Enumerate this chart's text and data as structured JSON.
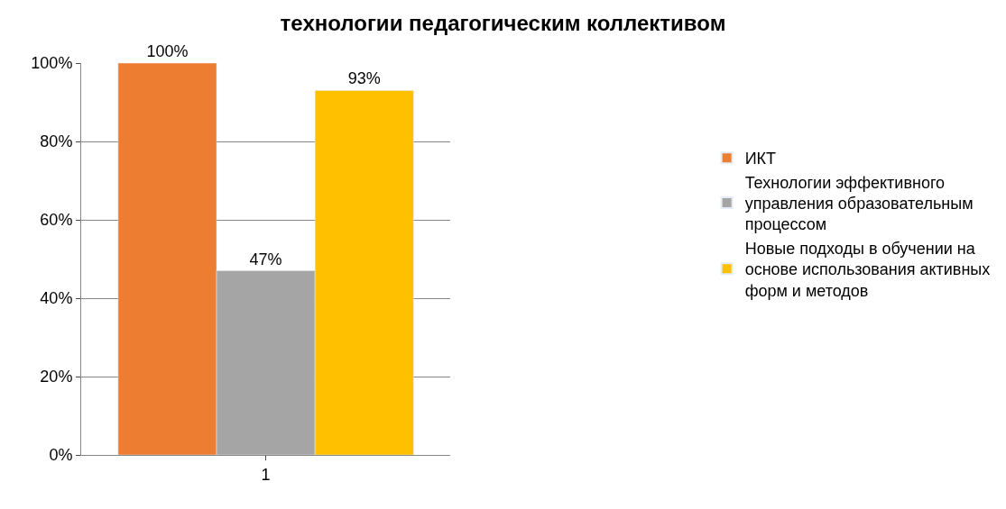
{
  "chart_data": {
    "type": "bar",
    "title": "технологии педагогическим коллективом",
    "categories": [
      "1"
    ],
    "series": [
      {
        "name": "ИКТ",
        "color": "#ed7d31",
        "values": [
          100
        ],
        "value_labels": [
          "100%"
        ]
      },
      {
        "name": "Технологии эффективного управления образовательным процессом",
        "color": "#a5a5a5",
        "values": [
          47
        ],
        "value_labels": [
          "47%"
        ]
      },
      {
        "name": "Новые подходы в обучении на основе использования активных форм и методов",
        "color": "#ffc000",
        "values": [
          93
        ],
        "value_labels": [
          "93%"
        ]
      }
    ],
    "ylim": [
      0,
      100
    ],
    "yticks": [
      {
        "value": 0,
        "label": "0%"
      },
      {
        "value": 20,
        "label": "20%"
      },
      {
        "value": 40,
        "label": "40%"
      },
      {
        "value": 60,
        "label": "60%"
      },
      {
        "value": 80,
        "label": "80%"
      },
      {
        "value": 100,
        "label": "100%"
      }
    ],
    "grid": "y",
    "legend": "right"
  }
}
